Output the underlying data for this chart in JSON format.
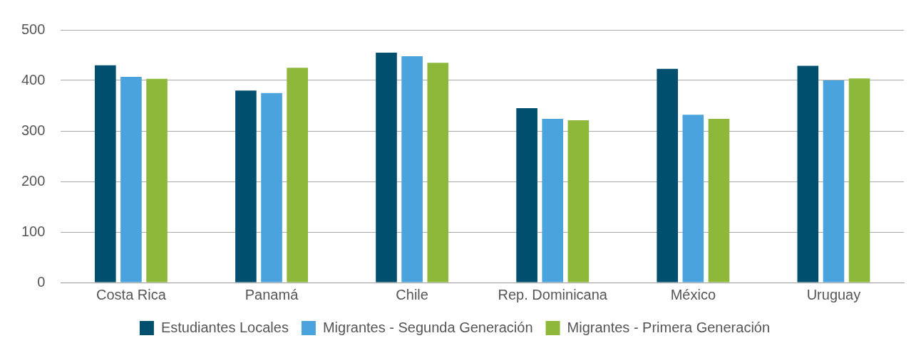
{
  "chart_data": {
    "type": "bar",
    "categories": [
      "Costa Rica",
      "Panamá",
      "Chile",
      "Rep. Dominicana",
      "México",
      "Uruguay"
    ],
    "series": [
      {
        "name": "Estudiantes Locales",
        "color": "#004f6e",
        "values": [
          430,
          380,
          455,
          345,
          423,
          429
        ]
      },
      {
        "name": "Migrantes - Segunda Generación",
        "color": "#4aa3dc",
        "values": [
          407,
          375,
          448,
          324,
          332,
          400
        ]
      },
      {
        "name": "Migrantes - Primera Generación",
        "color": "#8db83a",
        "values": [
          403,
          425,
          435,
          321,
          324,
          404
        ]
      }
    ],
    "ylim": [
      0,
      500
    ],
    "yticks": [
      0,
      100,
      200,
      300,
      400,
      500
    ],
    "grid": "y",
    "legend": "bottom"
  }
}
